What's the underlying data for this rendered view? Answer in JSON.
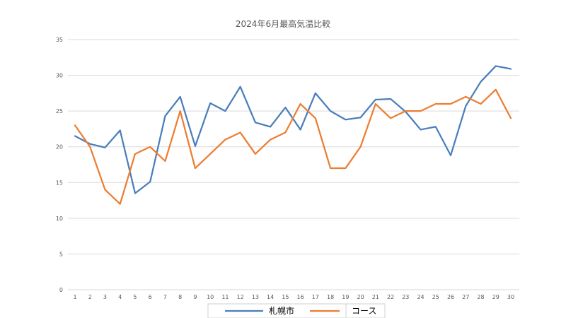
{
  "chart_data": {
    "type": "line",
    "title": "2024年6月最高気温比較",
    "xlabel": "",
    "ylabel": "",
    "categories": [
      "1",
      "2",
      "3",
      "4",
      "5",
      "6",
      "7",
      "8",
      "9",
      "10",
      "11",
      "12",
      "13",
      "14",
      "15",
      "16",
      "17",
      "18",
      "19",
      "20",
      "21",
      "22",
      "23",
      "24",
      "25",
      "26",
      "27",
      "28",
      "29",
      "30"
    ],
    "ylim": [
      0,
      35
    ],
    "yticks": [
      "0",
      "5",
      "10",
      "15",
      "20",
      "25",
      "30",
      "35"
    ],
    "grid": true,
    "legend_position": "bottom",
    "series": [
      {
        "name": "札幌市",
        "color": "#4a7ebb",
        "values": [
          21.5,
          20.4,
          19.9,
          22.3,
          13.5,
          15.1,
          24.3,
          27.0,
          20.1,
          26.1,
          25.0,
          28.4,
          23.4,
          22.8,
          25.5,
          22.4,
          27.5,
          25.0,
          23.8,
          24.1,
          26.6,
          26.7,
          24.9,
          22.4,
          22.8,
          18.8,
          25.7,
          29.1,
          31.3,
          30.9
        ]
      },
      {
        "name": "コース",
        "color": "#ed7d31",
        "values": [
          23,
          20,
          14,
          12,
          19,
          20,
          18,
          25,
          17,
          19,
          21,
          22,
          19,
          21,
          22,
          26,
          24,
          17,
          17,
          20,
          26,
          24,
          25,
          25,
          26,
          26,
          27,
          26,
          28,
          24
        ]
      }
    ]
  }
}
